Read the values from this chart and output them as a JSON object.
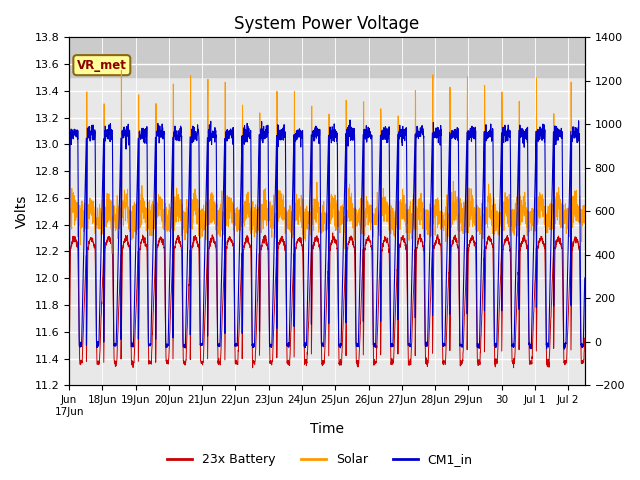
{
  "title": "System Power Voltage",
  "ylabel_left": "Volts",
  "xlabel": "Time",
  "ylim_left": [
    11.2,
    13.8
  ],
  "ylim_right": [
    -200,
    1400
  ],
  "annotation_text": "VR_met",
  "legend_labels": [
    "23x Battery",
    "Solar",
    "CM1_in"
  ],
  "legend_colors": [
    "#cc0000",
    "#ff9900",
    "#0000cc"
  ],
  "bg_band_ymin": 13.5,
  "bg_band_ymax": 13.85,
  "bg_color": "#d8d8d8",
  "plot_bg": "#e8e8e8",
  "xtick_labels": [
    "Jun\n17Jun",
    "18Jun",
    "19Jun",
    "20Jun",
    "21Jun",
    "22Jun",
    "23Jun",
    "24Jun",
    "25Jun",
    "26Jun",
    "27Jun",
    "28Jun",
    "29Jun",
    "30",
    "Jul 1",
    "Jul 2"
  ],
  "xtick_positions": [
    0,
    1,
    2,
    3,
    4,
    5,
    6,
    7,
    8,
    9,
    10,
    11,
    12,
    13,
    14,
    15
  ],
  "yticks_left": [
    11.2,
    11.4,
    11.6,
    11.8,
    12.0,
    12.2,
    12.4,
    12.6,
    12.8,
    13.0,
    13.2,
    13.4,
    13.6,
    13.8
  ],
  "yticks_right": [
    -200,
    0,
    200,
    400,
    600,
    800,
    1000,
    1200,
    1400
  ]
}
